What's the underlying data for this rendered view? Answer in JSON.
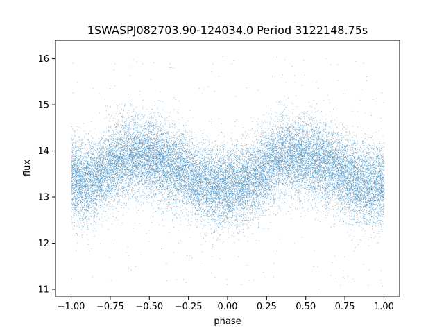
{
  "chart_data": {
    "type": "scatter",
    "title": "1SWASPJ082703.90-124034.0 Period 3122148.75s",
    "xlabel": "phase",
    "ylabel": "flux",
    "xlim": [
      -1.1,
      1.1
    ],
    "ylim": [
      10.85,
      16.4
    ],
    "x_ticks": [
      -1.0,
      -0.75,
      -0.5,
      -0.25,
      0.0,
      0.25,
      0.5,
      0.75,
      1.0
    ],
    "x_tick_labels": [
      "−1.00",
      "−0.75",
      "−0.50",
      "−0.25",
      "0.00",
      "0.25",
      "0.50",
      "0.75",
      "1.00"
    ],
    "y_ticks": [
      11,
      12,
      13,
      14,
      15,
      16
    ],
    "y_tick_labels": [
      "11",
      "12",
      "13",
      "14",
      "15",
      "16"
    ],
    "grid": false,
    "series": [
      {
        "color": "#1f77b4",
        "marker": "point",
        "point_count": 26000,
        "description_of_trend": [
          {
            "phase": -1.0,
            "median_flux": 13.4
          },
          {
            "phase": -0.9,
            "median_flux": 13.3
          },
          {
            "phase": -0.8,
            "median_flux": 13.5
          },
          {
            "phase": -0.7,
            "median_flux": 13.8
          },
          {
            "phase": -0.6,
            "median_flux": 13.9
          },
          {
            "phase": -0.5,
            "median_flux": 13.85
          },
          {
            "phase": -0.4,
            "median_flux": 13.75
          },
          {
            "phase": -0.3,
            "median_flux": 13.6
          },
          {
            "phase": -0.2,
            "median_flux": 13.35
          },
          {
            "phase": -0.1,
            "median_flux": 13.25
          },
          {
            "phase": 0.0,
            "median_flux": 13.2
          },
          {
            "phase": 0.1,
            "median_flux": 13.3
          },
          {
            "phase": 0.2,
            "median_flux": 13.5
          },
          {
            "phase": 0.3,
            "median_flux": 13.8
          },
          {
            "phase": 0.4,
            "median_flux": 13.9
          },
          {
            "phase": 0.5,
            "median_flux": 13.85
          },
          {
            "phase": 0.6,
            "median_flux": 13.75
          },
          {
            "phase": 0.7,
            "median_flux": 13.6
          },
          {
            "phase": 0.8,
            "median_flux": 13.35
          },
          {
            "phase": 0.9,
            "median_flux": 13.25
          },
          {
            "phase": 1.0,
            "median_flux": 13.3
          }
        ]
      }
    ]
  }
}
